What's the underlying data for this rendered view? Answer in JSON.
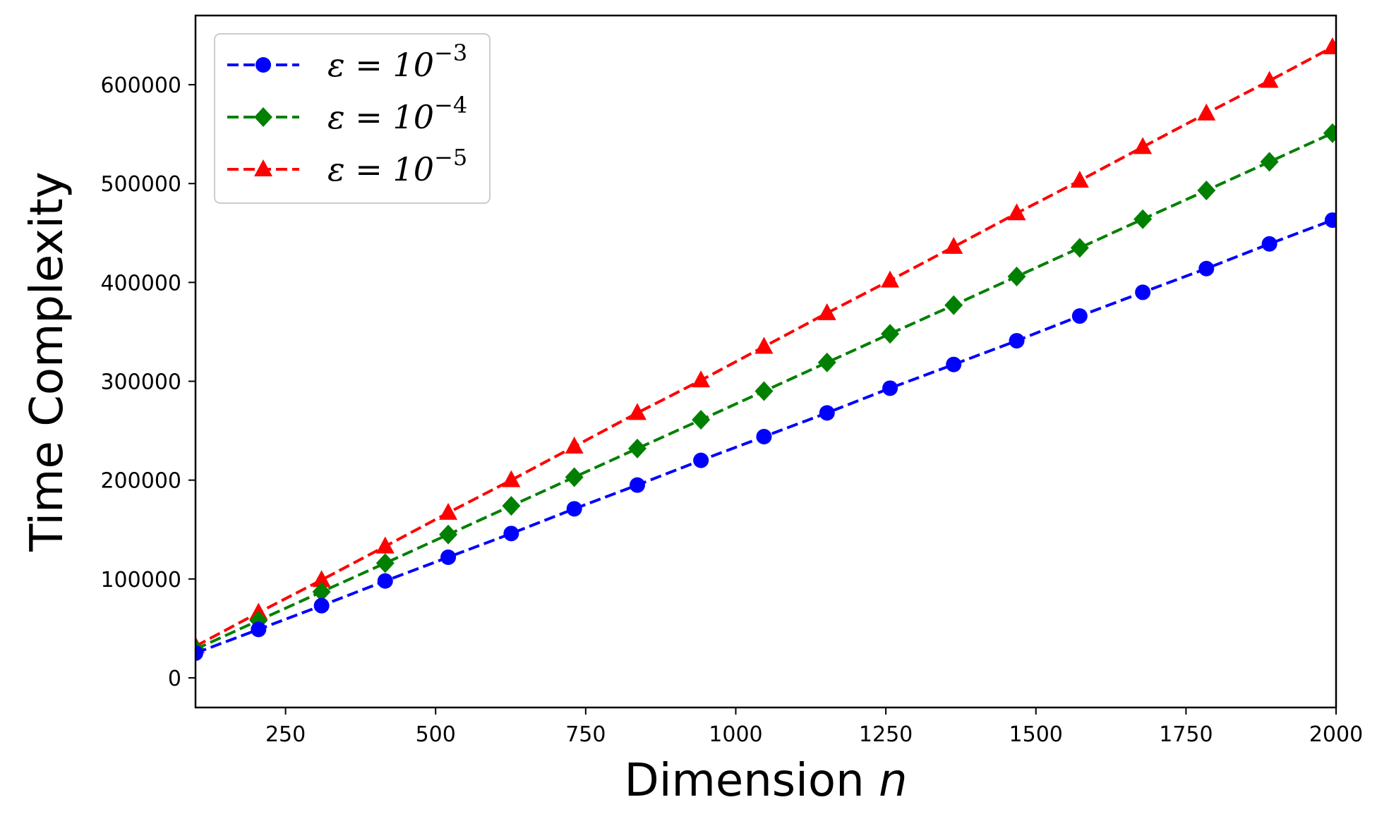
{
  "chart_data": {
    "type": "line",
    "xlabel": "Dimension",
    "xlabel_var": "n",
    "ylabel": "Time Complexity",
    "xlim": [
      100,
      2000
    ],
    "ylim": [
      -30000,
      670000
    ],
    "xticks": [
      250,
      500,
      750,
      1000,
      1250,
      1500,
      1750,
      2000
    ],
    "yticks": [
      0,
      100000,
      200000,
      300000,
      400000,
      500000,
      600000
    ],
    "grid": false,
    "legend_position": "top-left",
    "x": [
      100,
      205,
      310,
      416,
      521,
      626,
      731,
      836,
      942,
      1047,
      1152,
      1257,
      1363,
      1468,
      1573,
      1678,
      1784,
      1889,
      1994
    ],
    "series": [
      {
        "name_prefix": "ε = 10",
        "name_exp": "−5",
        "color": "#ff0000",
        "marker": "triangle",
        "values": [
          32000,
          66000,
          99000,
          133000,
          167000,
          200000,
          234000,
          268000,
          301000,
          335000,
          369000,
          402000,
          436000,
          470000,
          503000,
          537000,
          571000,
          604000,
          638000
        ]
      },
      {
        "name_prefix": "ε = 10",
        "name_exp": "−4",
        "color": "#008000",
        "marker": "diamond",
        "values": [
          29000,
          58000,
          87000,
          116000,
          145000,
          174000,
          203000,
          232000,
          261000,
          290000,
          319000,
          348000,
          377000,
          406000,
          435000,
          464000,
          493000,
          522000,
          551000
        ]
      },
      {
        "name_prefix": "ε = 10",
        "name_exp": "−3",
        "color": "#0000ff",
        "marker": "circle",
        "values": [
          25000,
          49000,
          73000,
          98000,
          122000,
          146000,
          171000,
          195000,
          220000,
          244000,
          268000,
          293000,
          317000,
          341000,
          366000,
          390000,
          414000,
          439000,
          463000
        ]
      }
    ]
  }
}
